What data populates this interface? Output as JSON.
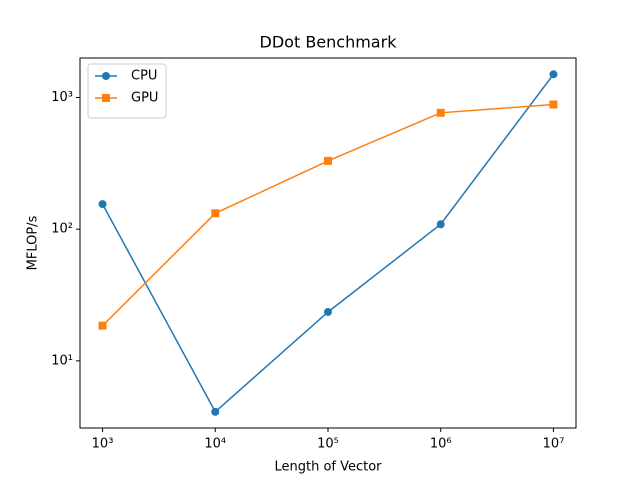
{
  "chart_data": {
    "type": "line",
    "title": "DDot Benchmark",
    "xlabel": "Length of Vector",
    "ylabel": "MFLOP/s",
    "xscale": "log",
    "yscale": "log",
    "x": [
      1000,
      10000,
      100000,
      1000000,
      10000000
    ],
    "series": [
      {
        "name": "CPU",
        "color": "#1f77b4",
        "marker": "o",
        "values": [
          155,
          4.1,
          23.5,
          109,
          1500
        ]
      },
      {
        "name": "GPU",
        "color": "#ff7f0e",
        "marker": "s",
        "values": [
          18.5,
          132,
          330,
          765,
          885
        ]
      }
    ],
    "xlim": [
      631,
      15850000
    ],
    "ylim": [
      3.09,
      1995
    ],
    "xticks": [
      {
        "value": 1000,
        "label": "10³"
      },
      {
        "value": 10000,
        "label": "10⁴"
      },
      {
        "value": 100000,
        "label": "10⁵"
      },
      {
        "value": 1000000,
        "label": "10⁶"
      },
      {
        "value": 10000000,
        "label": "10⁷"
      }
    ],
    "yticks": [
      {
        "value": 10,
        "label": "10¹"
      },
      {
        "value": 100,
        "label": "10²"
      },
      {
        "value": 1000,
        "label": "10³"
      }
    ],
    "legend": "upper left",
    "grid": false
  }
}
